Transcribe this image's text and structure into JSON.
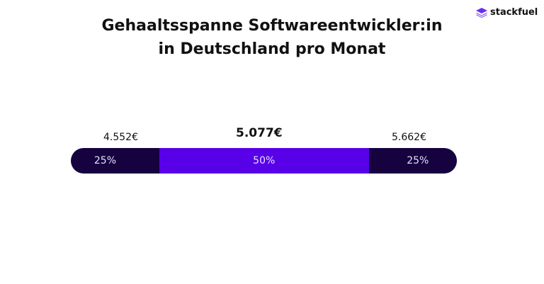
{
  "title_line1": "Gehaaltsspanne Softwareentwickler:in",
  "title_line2": "in Deutschland pro Monat",
  "logo": {
    "text": "stackfuel",
    "icon": "stack-layers-icon",
    "color": "#6b2df0"
  },
  "chart_data": {
    "type": "bar",
    "orientation": "horizontal-stacked",
    "labels": {
      "low": "4.552€",
      "median": "5.077€",
      "high": "5.662€"
    },
    "segments": [
      {
        "label": "25%",
        "value": 25,
        "color": "#15023f"
      },
      {
        "label": "50%",
        "value": 50,
        "color": "#5800e8"
      },
      {
        "label": "25%",
        "value": 25,
        "color": "#15023f"
      }
    ]
  }
}
